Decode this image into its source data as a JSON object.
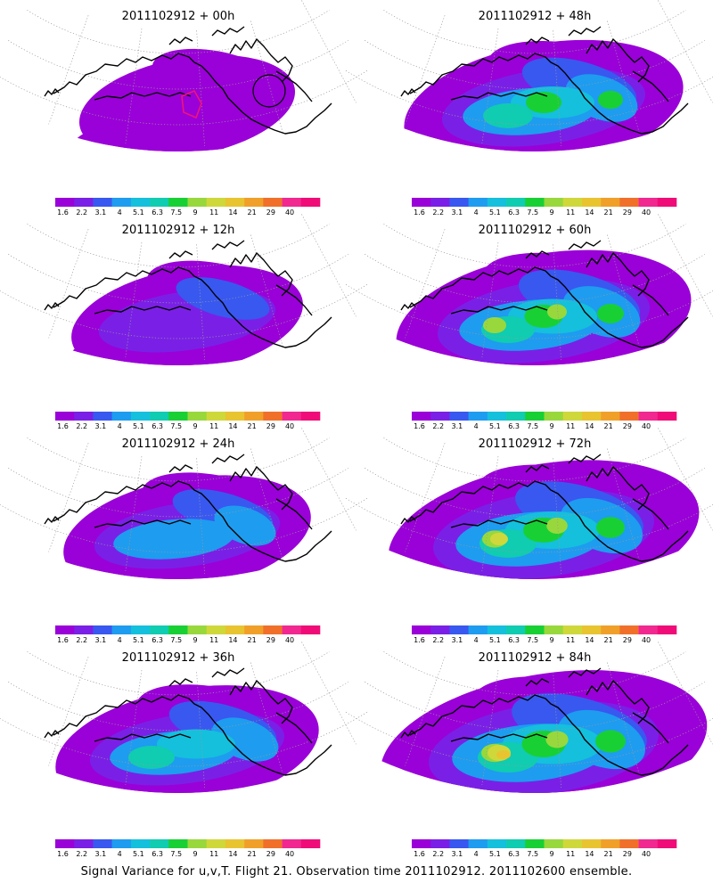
{
  "panels": [
    {
      "title": "2011102912 + 00h",
      "intensity": 0
    },
    {
      "title": "2011102912 + 12h",
      "intensity": 1
    },
    {
      "title": "2011102912 + 24h",
      "intensity": 2
    },
    {
      "title": "2011102912 + 36h",
      "intensity": 3
    },
    {
      "title": "2011102912 + 48h",
      "intensity": 4
    },
    {
      "title": "2011102912 + 60h",
      "intensity": 5
    },
    {
      "title": "2011102912 + 72h",
      "intensity": 6
    },
    {
      "title": "2011102912 + 84h",
      "intensity": 7
    }
  ],
  "colorbar": {
    "labels": [
      "1.6",
      "2.2",
      "3.1",
      "4",
      "5.1",
      "6.3",
      "7.5",
      "9",
      "11",
      "14",
      "21",
      "29",
      "40"
    ],
    "colors": [
      "#9a00d8",
      "#7a20e6",
      "#3858f0",
      "#1e9cf0",
      "#14c0dc",
      "#10ccb0",
      "#18d034",
      "#98d83c",
      "#cfd83a",
      "#e8c430",
      "#f0a028",
      "#f0702a",
      "#f02890",
      "#f00c78"
    ]
  },
  "caption": "Signal Variance for u,v,T. Flight 21. Observation time 2011102912. 2011102600 ensemble."
}
